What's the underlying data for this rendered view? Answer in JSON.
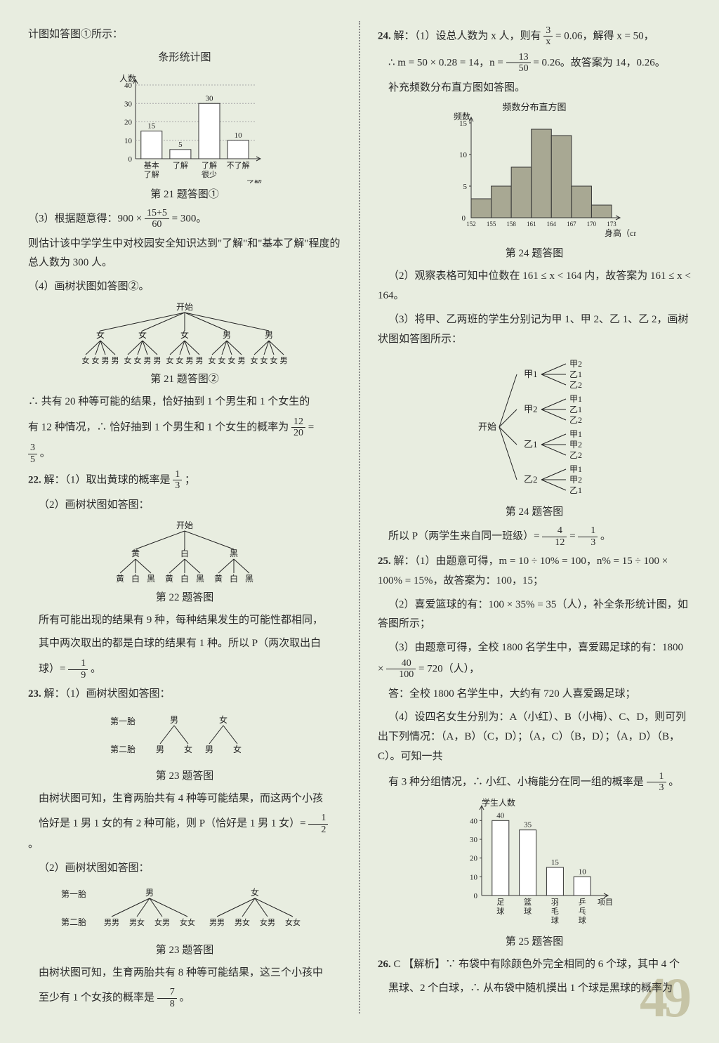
{
  "page_number": "49",
  "left": {
    "t21_a": "计图如答图①所示：",
    "chart21_title": "条形统计图",
    "chart21_ylabel": "人数",
    "chart21_xlabel": "了解\n程度",
    "chart21": {
      "categories": [
        "基本\n了解",
        "了解",
        "了解\n很少",
        "不了解"
      ],
      "values": [
        15,
        5,
        30,
        10
      ],
      "bar_labels": [
        "15",
        "5",
        "30",
        "10"
      ],
      "ylim": [
        0,
        40
      ],
      "ytick_step": 10,
      "bar_color": "#ffffff",
      "bar_border": "#333",
      "axis_color": "#333",
      "bg": "#e8ede0"
    },
    "fig21a": "第 21 题答图①",
    "t21_b": "（3）根据题意得：900 × ",
    "t21_b_frac": {
      "n": "15+5",
      "d": "60"
    },
    "t21_b2": " = 300。",
    "t21_c": "则估计该中学学生中对校园安全知识达到\"了解\"和\"基本了解\"程度的总人数为 300 人。",
    "t21_d": "（4）画树状图如答图②。",
    "tree21": {
      "root": "开始",
      "l1": [
        "女",
        "女",
        "女",
        "男",
        "男"
      ],
      "l2": [
        "女女男男",
        "女女男男",
        "女女男男",
        "女女女男",
        "女女女男"
      ]
    },
    "fig21b": "第 21 题答图②",
    "t21_e1": "∴ 共有 20 种等可能的结果，恰好抽到 1 个男生和 1 个女生的",
    "t21_e2": "有 12 种情况，∴ 恰好抽到 1 个男生和 1 个女生的概率为",
    "t21_e_frac1": {
      "n": "12",
      "d": "20"
    },
    "t21_e3": " = ",
    "t21_e_frac2": {
      "n": "3",
      "d": "5"
    },
    "t21_e4": "。",
    "q22": "22.",
    "t22_a": "解：（1）取出黄球的概率是",
    "t22_a_frac": {
      "n": "1",
      "d": "3"
    },
    "t22_a2": "；",
    "t22_b": "（2）画树状图如答图：",
    "tree22": {
      "root": "开始",
      "l1": [
        "黄",
        "白",
        "黑"
      ],
      "l2": [
        "黄 白 黑",
        "黄 白 黑",
        "黄 白 黑"
      ]
    },
    "fig22": "第 22 题答图",
    "t22_c1": "所有可能出现的结果有 9 种，每种结果发生的可能性都相同，",
    "t22_c2": "其中两次取出的都是白球的结果有 1 种。所以 P（两次取出白",
    "t22_c3": "球）= ",
    "t22_c_frac": {
      "n": "1",
      "d": "9"
    },
    "t22_c4": "。",
    "q23": "23.",
    "t23_a": "解：（1）画树状图如答图：",
    "tree23a": {
      "labels": [
        "第一胎",
        "第二胎"
      ],
      "l1": [
        "男",
        "女"
      ],
      "l2": [
        "男  女",
        "男  女"
      ]
    },
    "fig23a": "第 23 题答图",
    "t23_b1": "由树状图可知，生育两胎共有 4 种等可能结果，而这两个小孩",
    "t23_b2": "恰好是 1 男 1 女的有 2 种可能，则 P（恰好是 1 男 1 女）= ",
    "t23_b_frac": {
      "n": "1",
      "d": "2"
    },
    "t23_b3": "。",
    "t23_c": "（2）画树状图如答图：",
    "tree23b": {
      "labels": [
        "第一胎",
        "第二胎"
      ],
      "l1": [
        "男",
        "女"
      ],
      "l2": [
        "男男 男女 女男 女女",
        "男男 男女 女男 女女"
      ]
    },
    "fig23b": "第 23 题答图",
    "t23_d1": "由树状图可知，生育两胎共有 8 种等可能结果，这三个小孩中",
    "t23_d2": "至少有 1 个女孩的概率是",
    "t23_d_frac": {
      "n": "7",
      "d": "8"
    },
    "t23_d3": "。"
  },
  "right": {
    "q24": "24.",
    "t24_a1": "解：（1）设总人数为 x 人，则有",
    "t24_a_frac": {
      "n": "3",
      "d": "x"
    },
    "t24_a2": " = 0.06，解得 x = 50，",
    "t24_b1": "∴ m = 50 × 0.28 = 14，n = ",
    "t24_b_frac": {
      "n": "13",
      "d": "50"
    },
    "t24_b2": " = 0.26。故答案为 14，0.26。",
    "t24_c": "补充频数分布直方图如答图。",
    "hist24_title": "频数分布直方图",
    "hist24_ylabel": "频数",
    "hist24_xlabel": "身高（cm）",
    "hist24": {
      "edges": [
        "152",
        "155",
        "158",
        "161",
        "164",
        "167",
        "170",
        "173"
      ],
      "values": [
        3,
        5,
        8,
        14,
        13,
        5,
        2
      ],
      "ylim": [
        0,
        15
      ],
      "yticks": [
        5,
        10,
        15
      ],
      "bar_color": "#a8a893",
      "bar_border": "#333",
      "axis_color": "#333"
    },
    "fig24a": "第 24 题答图",
    "t24_d": "（2）观察表格可知中位数在 161 ≤ x < 164 内，故答案为 161 ≤ x < 164。",
    "t24_e": "（3）将甲、乙两班的学生分别记为甲 1、甲 2、乙 1、乙 2，画树状图如答图所示：",
    "tree24": {
      "root": "开始",
      "l1": [
        "甲1",
        "甲2",
        "乙1",
        "乙2"
      ],
      "l2": [
        [
          "甲2",
          "乙1",
          "乙2"
        ],
        [
          "甲1",
          "乙1",
          "乙2"
        ],
        [
          "甲1",
          "甲2",
          "乙2"
        ],
        [
          "甲1",
          "甲2",
          "乙1"
        ]
      ]
    },
    "fig24b": "第 24 题答图",
    "t24_f1": "所以 P（两学生来自同一班级）= ",
    "t24_f_frac1": {
      "n": "4",
      "d": "12"
    },
    "t24_f2": " = ",
    "t24_f_frac2": {
      "n": "1",
      "d": "3"
    },
    "t24_f3": "。",
    "q25": "25.",
    "t25_a": "解：（1）由题意可得，m = 10 ÷ 10% = 100，n% = 15 ÷ 100 × 100% = 15%，故答案为：100，15；",
    "t25_b": "（2）喜爱篮球的有：100 × 35% = 35（人），补全条形统计图，如答图所示；",
    "t25_c1": "（3）由题意可得，全校 1800 名学生中，喜爱踢足球的有：1800 × ",
    "t25_c_frac": {
      "n": "40",
      "d": "100"
    },
    "t25_c2": " = 720（人），",
    "t25_d": "答：全校 1800 名学生中，大约有 720 人喜爱踢足球；",
    "t25_e1": "（4）设四名女生分别为：A（小红）、B（小梅）、C、D，则可列出下列情况：（A，B）（C，D）；（A，C）（B，D）；（A，D）（B，C）。可知一共",
    "t25_e2": "有 3 种分组情况，∴ 小红、小梅能分在同一组的概率是",
    "t25_e_frac": {
      "n": "1",
      "d": "3"
    },
    "t25_e3": "。",
    "chart25_ylabel": "学生人数",
    "chart25_xlabel": "项目",
    "chart25": {
      "categories": [
        "足\n球",
        "篮\n球",
        "羽\n毛\n球",
        "乒\n乓\n球"
      ],
      "values": [
        40,
        35,
        15,
        10
      ],
      "bar_labels": [
        "40",
        "35",
        "15",
        "10"
      ],
      "ylim": [
        0,
        45
      ],
      "ytick_step": 10,
      "bar_color": "#ffffff",
      "bar_border": "#333",
      "axis_color": "#333"
    },
    "fig25": "第 25 题答图",
    "q26": "26.",
    "t26_a": "C  【解析】∵ 布袋中有除颜色外完全相同的 6 个球，其中 4 个",
    "t26_b": "黑球、2 个白球，∴ 从布袋中随机摸出 1 个球是黑球的概率为"
  }
}
